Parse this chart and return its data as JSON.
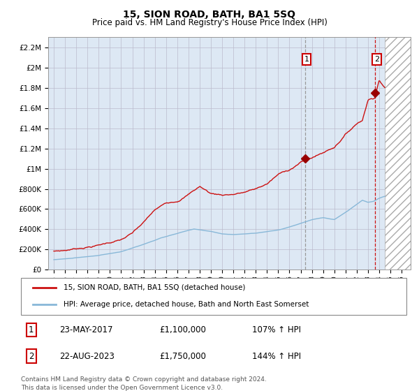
{
  "title": "15, SION ROAD, BATH, BA1 5SQ",
  "subtitle": "Price paid vs. HM Land Registry's House Price Index (HPI)",
  "ylabel_ticks": [
    "£0",
    "£200K",
    "£400K",
    "£600K",
    "£800K",
    "£1M",
    "£1.2M",
    "£1.4M",
    "£1.6M",
    "£1.8M",
    "£2M",
    "£2.2M"
  ],
  "ylim": [
    0,
    2300000
  ],
  "xlim_start": 1994.5,
  "xlim_end": 2026.8,
  "hpi_color": "#88b8d8",
  "price_color": "#cc1111",
  "marker_color": "#990000",
  "vline1_color": "#999999",
  "vline2_color": "#cc1111",
  "bg_color": "#dde8f4",
  "grid_color": "#bbbbcc",
  "sale1_year": 2017.388,
  "sale1_price": 1100000,
  "sale1_label": "1",
  "sale1_date": "23-MAY-2017",
  "sale1_pct": "107% ↑ HPI",
  "sale2_year": 2023.638,
  "sale2_price": 1750000,
  "sale2_label": "2",
  "sale2_date": "22-AUG-2023",
  "sale2_pct": "144% ↑ HPI",
  "legend_line1": "15, SION ROAD, BATH, BA1 5SQ (detached house)",
  "legend_line2": "HPI: Average price, detached house, Bath and North East Somerset",
  "footer": "Contains HM Land Registry data © Crown copyright and database right 2024.\nThis data is licensed under the Open Government Licence v3.0.",
  "hatch_region_start": 2024.5,
  "hatch_region_end": 2027.0
}
